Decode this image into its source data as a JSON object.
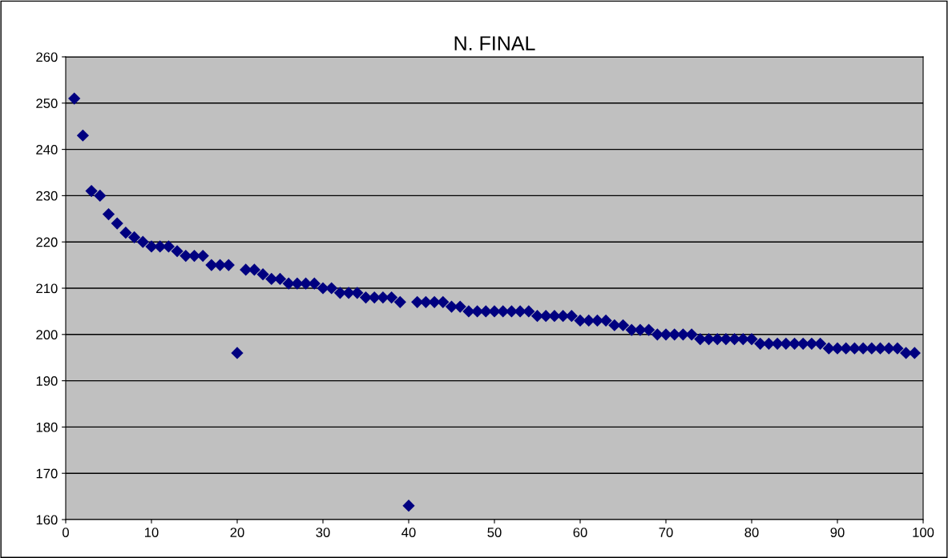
{
  "chart_data": {
    "type": "scatter",
    "title": "N. FINAL",
    "x": [
      1,
      2,
      3,
      4,
      5,
      6,
      7,
      8,
      9,
      10,
      11,
      12,
      13,
      14,
      15,
      16,
      17,
      18,
      19,
      20,
      21,
      22,
      23,
      24,
      25,
      26,
      27,
      28,
      29,
      30,
      31,
      32,
      33,
      34,
      35,
      36,
      37,
      38,
      39,
      40,
      41,
      42,
      43,
      44,
      45,
      46,
      47,
      48,
      49,
      50,
      51,
      52,
      53,
      54,
      55,
      56,
      57,
      58,
      59,
      60,
      61,
      62,
      63,
      64,
      65,
      66,
      67,
      68,
      69,
      70,
      71,
      72,
      73,
      74,
      75,
      76,
      77,
      78,
      79,
      80,
      81,
      82,
      83,
      84,
      85,
      86,
      87,
      88,
      89,
      90,
      91,
      92,
      93,
      94,
      95,
      96,
      97,
      98,
      99
    ],
    "series": [
      {
        "color": "#000080",
        "values": [
          251,
          243,
          231,
          230,
          226,
          224,
          222,
          221,
          220,
          219,
          219,
          219,
          218,
          217,
          217,
          217,
          215,
          215,
          215,
          196,
          214,
          214,
          213,
          212,
          212,
          211,
          211,
          211,
          211,
          210,
          210,
          209,
          209,
          209,
          208,
          208,
          208,
          208,
          207,
          163,
          207,
          207,
          207,
          207,
          206,
          206,
          205,
          205,
          205,
          205,
          205,
          205,
          205,
          205,
          204,
          204,
          204,
          204,
          204,
          203,
          203,
          203,
          203,
          202,
          202,
          201,
          201,
          201,
          200,
          200,
          200,
          200,
          200,
          199,
          199,
          199,
          199,
          199,
          199,
          199,
          198,
          198,
          198,
          198,
          198,
          198,
          198,
          198,
          197,
          197,
          197,
          197,
          197,
          197,
          197,
          197,
          197,
          196,
          196
        ]
      }
    ],
    "xlim": [
      0,
      100
    ],
    "xticks": [
      0,
      10,
      20,
      30,
      40,
      50,
      60,
      70,
      80,
      90,
      100
    ],
    "ylim": [
      160,
      260
    ],
    "yticks": [
      160,
      170,
      180,
      190,
      200,
      210,
      220,
      230,
      240,
      250,
      260
    ],
    "grid": "y",
    "marker": "diamond",
    "legend": false
  }
}
